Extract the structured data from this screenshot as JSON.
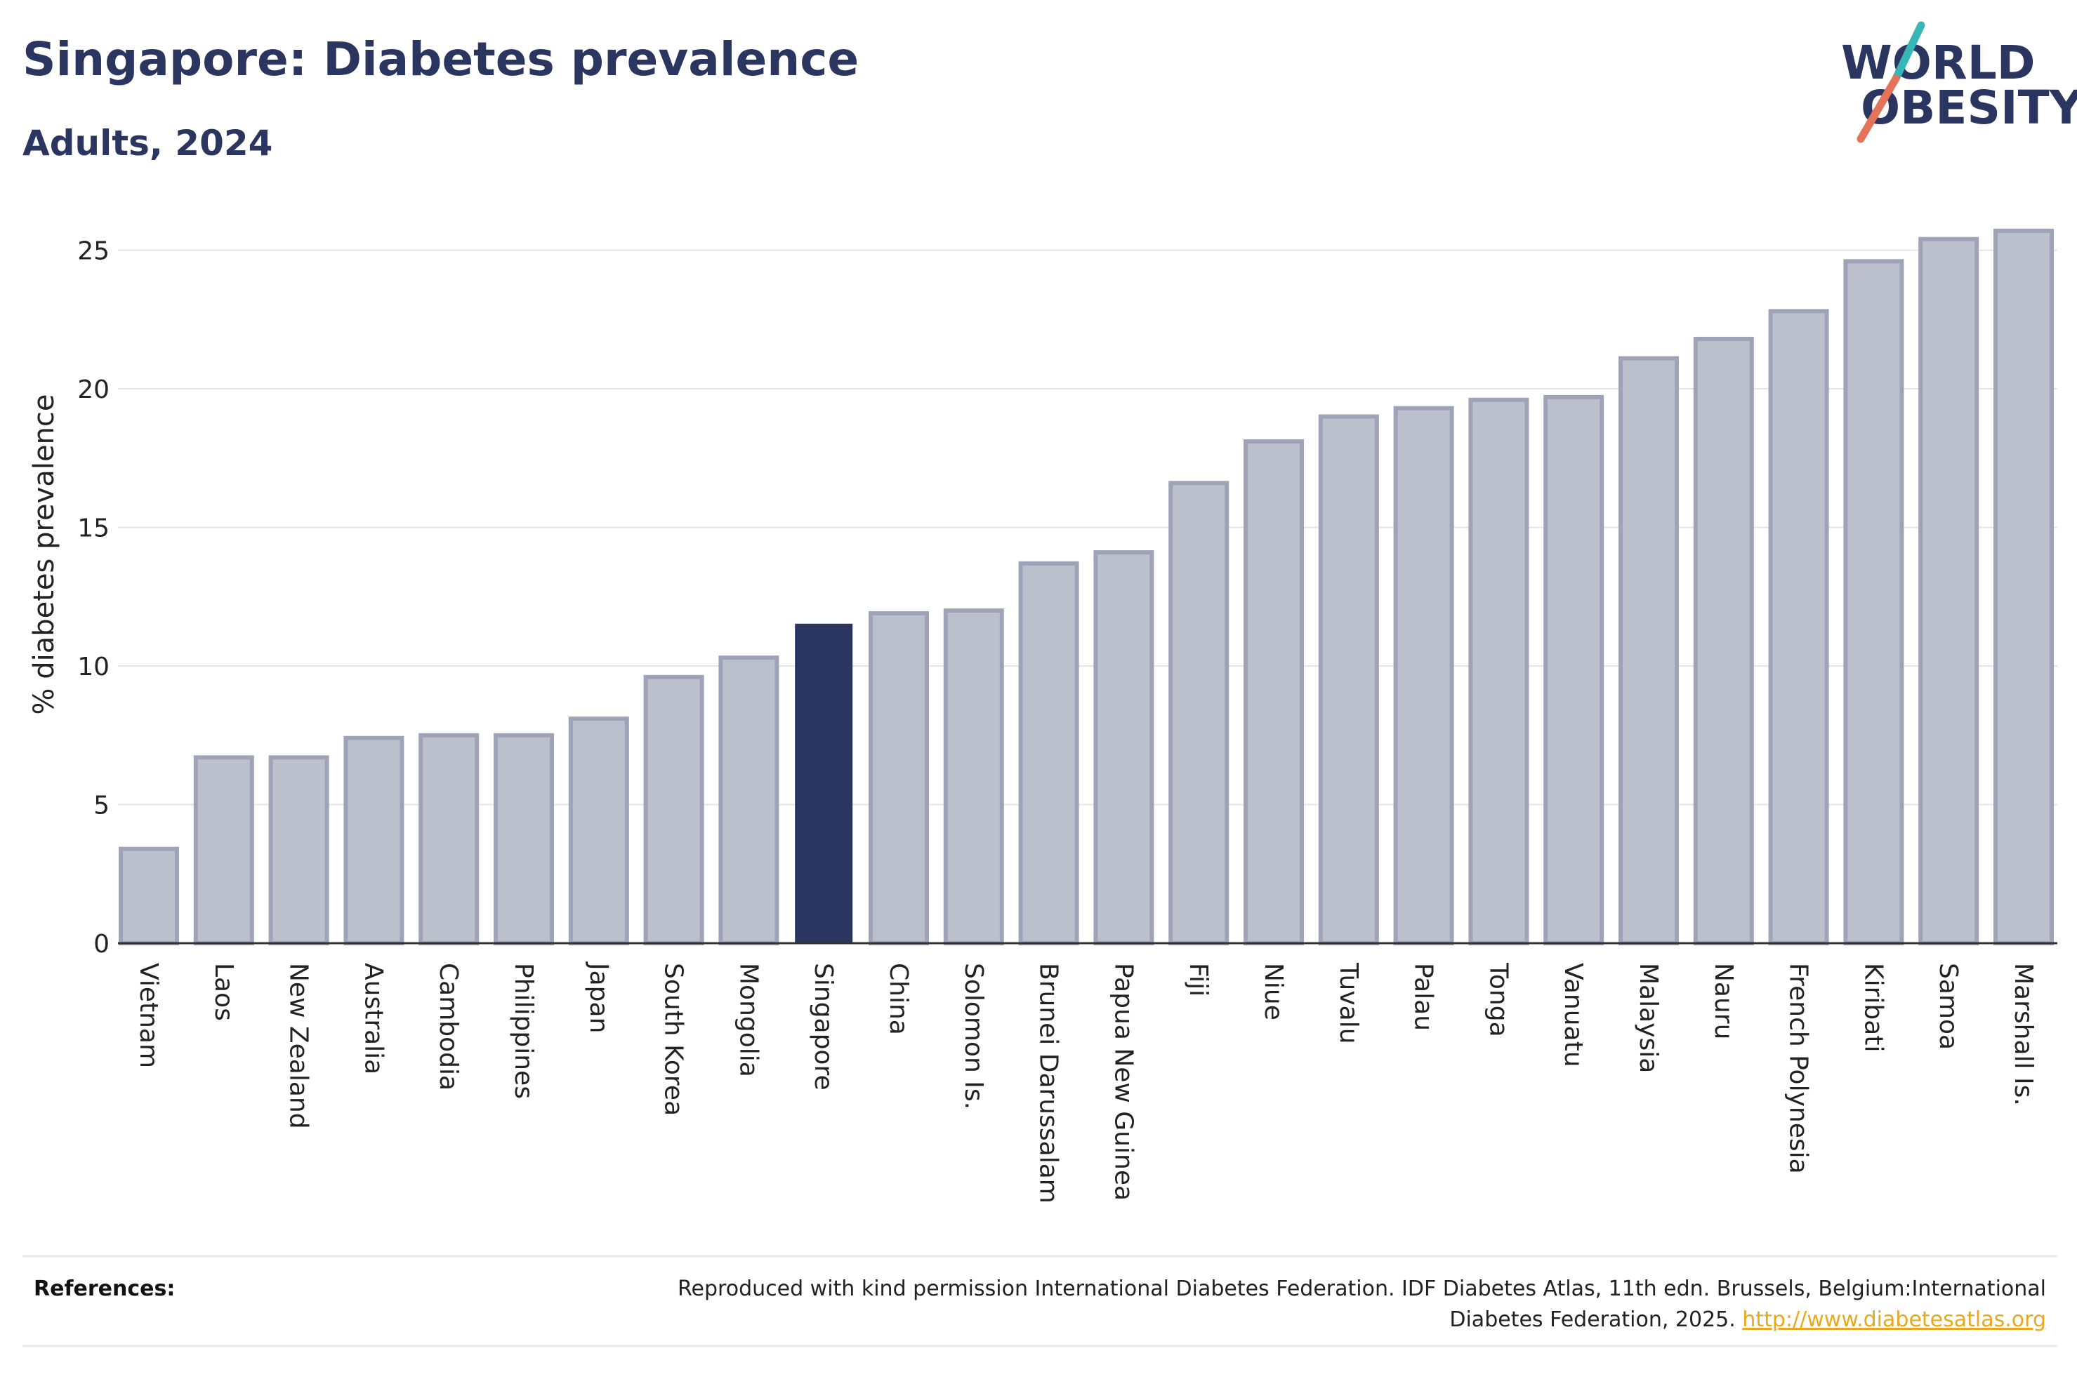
{
  "header": {
    "title": "Singapore: Diabetes prevalence",
    "subtitle": "Adults, 2024"
  },
  "logo": {
    "line1": "WORLD",
    "line2": "OBESITY",
    "slash_colors": [
      "#36b6b5",
      "#e5735a"
    ]
  },
  "chart_data": {
    "type": "bar",
    "title": "Singapore: Diabetes prevalence",
    "subtitle": "Adults, 2024",
    "xlabel": "",
    "ylabel": "% diabetes prevalence",
    "ylim": [
      0,
      26
    ],
    "yticks": [
      0,
      5,
      10,
      15,
      20,
      25
    ],
    "grid": true,
    "legend": "none",
    "highlight": "Singapore",
    "colors": {
      "bar_fill": "#bcc0cd",
      "bar_stroke": "#9ea3b8",
      "highlight": "#2a3560",
      "grid": "#e5e5e5",
      "axis": "#333333"
    },
    "categories": [
      "Vietnam",
      "Laos",
      "New Zealand",
      "Australia",
      "Cambodia",
      "Philippines",
      "Japan",
      "South Korea",
      "Mongolia",
      "Singapore",
      "China",
      "Solomon Is.",
      "Brunei Darussalam",
      "Papua New Guinea",
      "Fiji",
      "Niue",
      "Tuvalu",
      "Palau",
      "Tonga",
      "Vanuatu",
      "Malaysia",
      "Nauru",
      "French Polynesia",
      "Kiribati",
      "Samoa",
      "Marshall Is."
    ],
    "values": [
      3.4,
      6.7,
      6.7,
      7.4,
      7.5,
      7.5,
      8.1,
      9.6,
      10.3,
      11.5,
      11.9,
      12.0,
      13.7,
      14.1,
      16.6,
      18.1,
      19.0,
      19.3,
      19.6,
      19.7,
      21.1,
      21.8,
      22.8,
      24.6,
      25.4,
      25.7
    ]
  },
  "references": {
    "label": "References:",
    "line1": "Reproduced with kind permission International Diabetes Federation. IDF Diabetes Atlas, 11th edn. Brussels, Belgium:International",
    "line2": "Diabetes Federation, 2025.",
    "link": "http://www.diabetesatlas.org",
    "link_color": "#e8a91c"
  }
}
